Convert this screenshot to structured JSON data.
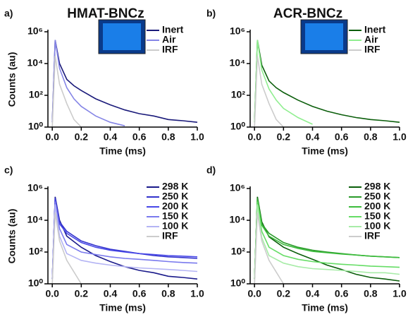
{
  "chart_data": [
    {
      "type": "line",
      "panel_label": "a)",
      "title": "HMAT-BNCz",
      "y_label": "Counts (au)",
      "x_label": "Time (ms)",
      "log_scale_y": true,
      "legend": "upper right",
      "xlim": [
        -0.03,
        1.0
      ],
      "ylim": [
        1,
        1000000
      ],
      "xticks": [
        {
          "value": 0,
          "label": "0.0"
        },
        0.2,
        0.4,
        0.6,
        0.8,
        {
          "value": 1,
          "label": "1.0"
        }
      ],
      "yticks": [
        {
          "value": 1,
          "label": "10⁰"
        },
        {
          "value": 100,
          "label": "10²"
        },
        {
          "value": 10000,
          "label": "10⁴"
        },
        {
          "value": 1000000,
          "label": "10⁶"
        }
      ],
      "x": [
        0.0,
        0.02,
        0.05,
        0.1,
        0.15,
        0.2,
        0.3,
        0.4,
        0.5,
        0.6,
        0.7,
        0.8,
        0.9,
        1.0
      ],
      "series": [
        {
          "name": "Inert",
          "color": "#1a1a7a",
          "values": [
            2,
            300000,
            10000,
            1000,
            400,
            200,
            60,
            25,
            12,
            7,
            5,
            3,
            2.5,
            2
          ]
        },
        {
          "name": "Air",
          "color": "#8585e6",
          "values": [
            2,
            300000,
            5000,
            300,
            60,
            20,
            5,
            2,
            1.2,
            null,
            null,
            null,
            null,
            null
          ]
        },
        {
          "name": "IRF",
          "color": "#cccccc",
          "values": [
            1,
            30000,
            500,
            30,
            3,
            1,
            null,
            null,
            null,
            null,
            null,
            null,
            null,
            null
          ]
        }
      ]
    },
    {
      "type": "line",
      "panel_label": "b)",
      "title": "ACR-BNCz",
      "x_label": "Time (ms)",
      "log_scale_y": true,
      "legend": "upper right",
      "xlim": [
        -0.03,
        1.0
      ],
      "ylim": [
        1,
        1000000
      ],
      "xticks": [
        {
          "value": 0,
          "label": "0.0"
        },
        0.2,
        0.4,
        0.6,
        0.8,
        {
          "value": 1,
          "label": "1.0"
        }
      ],
      "yticks": [
        {
          "value": 1,
          "label": "10⁰"
        },
        {
          "value": 100,
          "label": "10²"
        },
        {
          "value": 10000,
          "label": "10⁴"
        },
        {
          "value": 1000000,
          "label": "10⁶"
        }
      ],
      "x": [
        0.0,
        0.02,
        0.05,
        0.1,
        0.15,
        0.2,
        0.3,
        0.4,
        0.5,
        0.6,
        0.7,
        0.8,
        0.9,
        1.0
      ],
      "series": [
        {
          "name": "Inert",
          "color": "#0b5e0b",
          "values": [
            2,
            300000,
            8000,
            800,
            300,
            150,
            50,
            20,
            10,
            6,
            4,
            3,
            2.5,
            2
          ]
        },
        {
          "name": "Air",
          "color": "#90ee90",
          "values": [
            2,
            300000,
            4000,
            250,
            50,
            15,
            4,
            1.5,
            null,
            null,
            null,
            null,
            null,
            null
          ]
        },
        {
          "name": "IRF",
          "color": "#cccccc",
          "values": [
            1,
            30000,
            500,
            30,
            3,
            1,
            null,
            null,
            null,
            null,
            null,
            null,
            null,
            null
          ]
        }
      ]
    },
    {
      "type": "line",
      "panel_label": "c)",
      "y_label": "Counts (au)",
      "x_label": "Time (ms)",
      "log_scale_y": true,
      "legend": "upper right",
      "xlim": [
        -0.03,
        1.0
      ],
      "ylim": [
        1,
        1000000
      ],
      "xticks": [
        {
          "value": 0,
          "label": "0.0"
        },
        0.2,
        0.4,
        0.6,
        0.8,
        {
          "value": 1,
          "label": "1.0"
        }
      ],
      "yticks": [
        {
          "value": 1,
          "label": "10⁰"
        },
        {
          "value": 100,
          "label": "10²"
        },
        {
          "value": 10000,
          "label": "10⁴"
        },
        {
          "value": 1000000,
          "label": "10⁶"
        }
      ],
      "x": [
        0.0,
        0.02,
        0.05,
        0.1,
        0.2,
        0.3,
        0.4,
        0.5,
        0.6,
        0.7,
        0.8,
        0.9,
        1.0
      ],
      "series": [
        {
          "name": "298 K",
          "color": "#1a1a8a",
          "values": [
            2,
            300000,
            10000,
            1000,
            200,
            60,
            25,
            12,
            7,
            5,
            3,
            2.5,
            2
          ]
        },
        {
          "name": "250 K",
          "color": "#3333cc",
          "values": [
            2,
            250000,
            8000,
            2000,
            500,
            250,
            150,
            110,
            80,
            60,
            50,
            45,
            40
          ]
        },
        {
          "name": "200 K",
          "color": "#4848e8",
          "values": [
            2,
            200000,
            6000,
            1500,
            400,
            200,
            130,
            100,
            80,
            70,
            60,
            55,
            50
          ]
        },
        {
          "name": "150 K",
          "color": "#7a7aee",
          "values": [
            2,
            150000,
            3000,
            300,
            100,
            70,
            50,
            40,
            35,
            30,
            25,
            22,
            20
          ]
        },
        {
          "name": "100 K",
          "color": "#b4b4f4",
          "values": [
            2,
            100000,
            1000,
            80,
            30,
            20,
            15,
            12,
            10,
            9,
            8,
            7,
            6
          ]
        },
        {
          "name": "IRF",
          "color": "#cccccc",
          "values": [
            1,
            30000,
            500,
            30,
            1,
            null,
            null,
            null,
            null,
            null,
            null,
            null,
            null
          ]
        }
      ]
    },
    {
      "type": "line",
      "panel_label": "d)",
      "x_label": "Time (ms)",
      "log_scale_y": true,
      "legend": "upper right",
      "xlim": [
        -0.03,
        1.0
      ],
      "ylim": [
        1,
        1000000
      ],
      "xticks": [
        {
          "value": 0,
          "label": "0.0"
        },
        0.2,
        0.4,
        0.6,
        0.8,
        {
          "value": 1,
          "label": "1.0"
        }
      ],
      "yticks": [
        {
          "value": 1,
          "label": "10⁰"
        },
        {
          "value": 100,
          "label": "10²"
        },
        {
          "value": 10000,
          "label": "10⁴"
        },
        {
          "value": 1000000,
          "label": "10⁶"
        }
      ],
      "x": [
        0.0,
        0.02,
        0.05,
        0.1,
        0.2,
        0.3,
        0.4,
        0.5,
        0.6,
        0.7,
        0.8,
        0.9,
        1.0
      ],
      "series": [
        {
          "name": "298 K",
          "color": "#0b5e0b",
          "values": [
            2,
            300000,
            8000,
            900,
            200,
            80,
            35,
            15,
            8,
            4,
            2.5,
            2,
            1.5
          ]
        },
        {
          "name": "250 K",
          "color": "#2a9a2a",
          "values": [
            2,
            250000,
            6000,
            1500,
            400,
            200,
            130,
            100,
            80,
            65,
            55,
            50,
            45
          ]
        },
        {
          "name": "200 K",
          "color": "#3cbc3c",
          "values": [
            2,
            200000,
            5000,
            1000,
            300,
            170,
            110,
            90,
            75,
            65,
            55,
            50,
            45
          ]
        },
        {
          "name": "150 K",
          "color": "#66dd66",
          "values": [
            2,
            150000,
            2000,
            200,
            60,
            35,
            25,
            20,
            17,
            15,
            13,
            12,
            11
          ]
        },
        {
          "name": "100 K",
          "color": "#a8eca8",
          "values": [
            2,
            100000,
            800,
            60,
            20,
            12,
            9,
            8,
            7,
            6,
            5,
            5,
            4
          ]
        },
        {
          "name": "IRF",
          "color": "#cccccc",
          "values": [
            1,
            30000,
            500,
            30,
            1,
            null,
            null,
            null,
            null,
            null,
            null,
            null,
            null
          ]
        }
      ]
    }
  ]
}
